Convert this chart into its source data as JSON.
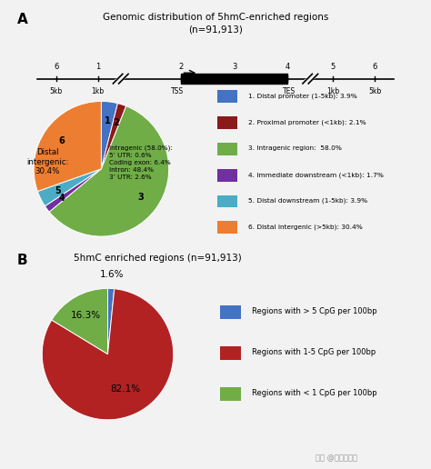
{
  "title_A": "Genomic distribution of 5hmC-enriched regions\n(n=91,913)",
  "title_B": "5hmC enriched regions (n=91,913)",
  "panel_A_slices": [
    3.9,
    2.1,
    58.0,
    1.7,
    3.9,
    30.4
  ],
  "panel_A_colors": [
    "#4472C4",
    "#8B1A1A",
    "#70AD47",
    "#7030A0",
    "#4BACC6",
    "#ED7D31"
  ],
  "panel_A_labels": [
    "1",
    "2",
    "3",
    "4",
    "5",
    "6"
  ],
  "panel_A_legend": [
    "1. Distal promoter (1-5kb): 3.9%",
    "2. Proximal promoter (<1kb): 2.1%",
    "3. Intragenic region:  58.0%",
    "4. Immediate downstream (<1kb): 1.7%",
    "5. Distal downstream (1-5kb): 3.9%",
    "6. Distal intergenic (>5kb): 30.4%"
  ],
  "panel_B_slices": [
    1.6,
    82.1,
    16.3
  ],
  "panel_B_colors": [
    "#4472C4",
    "#B22222",
    "#70AD47"
  ],
  "panel_B_pct_labels": [
    "1.6%",
    "82.1%",
    "16.3%"
  ],
  "panel_B_legend": [
    "Regions with > 5 CpG per 100bp",
    "Regions with 1-5 CpG per 100bp",
    "Regions with < 1 CpG per 100bp"
  ],
  "bg_color": "#F2F2F2",
  "watermark": "知乎 @易基因科技"
}
